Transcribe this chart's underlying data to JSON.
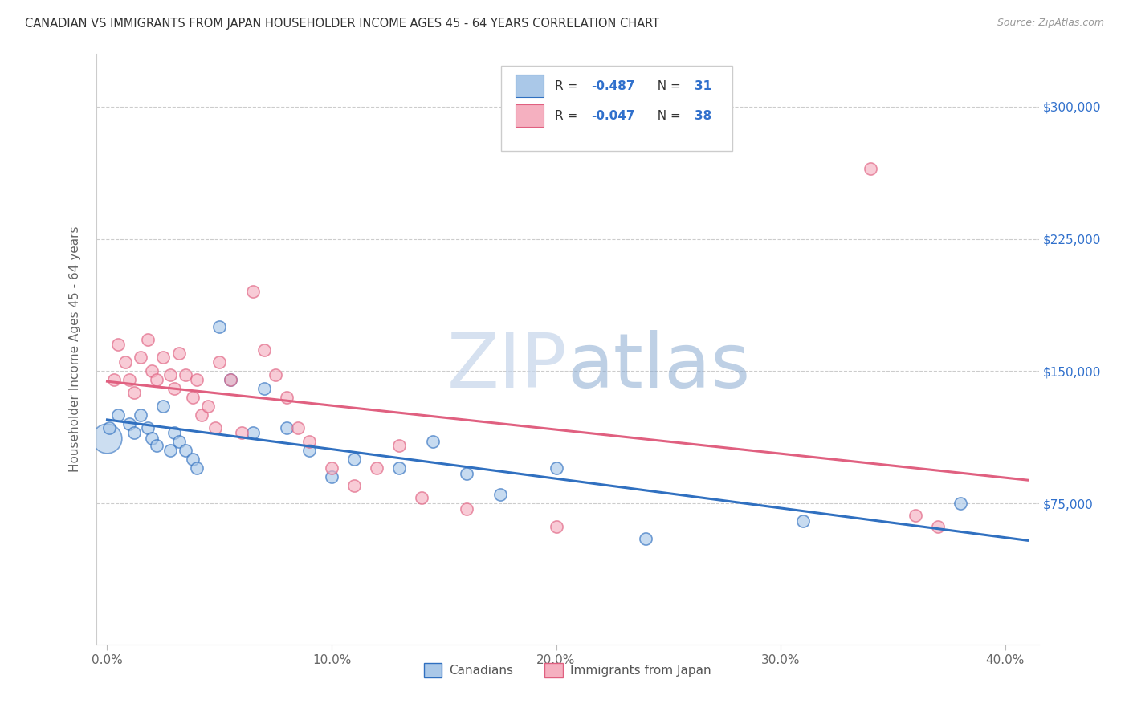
{
  "title": "CANADIAN VS IMMIGRANTS FROM JAPAN HOUSEHOLDER INCOME AGES 45 - 64 YEARS CORRELATION CHART",
  "source": "Source: ZipAtlas.com",
  "ylabel": "Householder Income Ages 45 - 64 years",
  "xlabel_ticks": [
    "0.0%",
    "10.0%",
    "20.0%",
    "30.0%",
    "40.0%"
  ],
  "xlabel_tick_vals": [
    0.0,
    0.1,
    0.2,
    0.3,
    0.4
  ],
  "ytick_labels": [
    "$75,000",
    "$150,000",
    "$225,000",
    "$300,000"
  ],
  "ytick_vals": [
    75000,
    150000,
    225000,
    300000
  ],
  "xlim": [
    -0.005,
    0.415
  ],
  "ylim": [
    -5000,
    330000
  ],
  "canadians_R": -0.487,
  "canadians_N": 31,
  "japan_R": -0.047,
  "japan_N": 38,
  "legend_labels": [
    "Canadians",
    "Immigrants from Japan"
  ],
  "canadians_color": "#aac8e8",
  "japan_color": "#f5b0c0",
  "canadians_line_color": "#3070c0",
  "japan_line_color": "#e06080",
  "canadians_scatter_x": [
    0.001,
    0.005,
    0.01,
    0.012,
    0.015,
    0.018,
    0.02,
    0.022,
    0.025,
    0.028,
    0.03,
    0.032,
    0.035,
    0.038,
    0.04,
    0.05,
    0.055,
    0.065,
    0.07,
    0.08,
    0.09,
    0.1,
    0.11,
    0.13,
    0.145,
    0.16,
    0.175,
    0.2,
    0.24,
    0.31,
    0.38
  ],
  "canadians_scatter_y": [
    118000,
    125000,
    120000,
    115000,
    125000,
    118000,
    112000,
    108000,
    130000,
    105000,
    115000,
    110000,
    105000,
    100000,
    95000,
    175000,
    145000,
    115000,
    140000,
    118000,
    105000,
    90000,
    100000,
    95000,
    110000,
    92000,
    80000,
    95000,
    55000,
    65000,
    75000
  ],
  "canadians_scatter_size": [
    60,
    60,
    60,
    60,
    60,
    60,
    60,
    60,
    60,
    60,
    60,
    60,
    60,
    60,
    60,
    60,
    60,
    60,
    60,
    60,
    60,
    60,
    60,
    60,
    60,
    60,
    60,
    60,
    60,
    60,
    60
  ],
  "canadians_big_x": [
    0.0
  ],
  "canadians_big_y": [
    112000
  ],
  "japan_scatter_x": [
    0.003,
    0.005,
    0.008,
    0.01,
    0.012,
    0.015,
    0.018,
    0.02,
    0.022,
    0.025,
    0.028,
    0.03,
    0.032,
    0.035,
    0.038,
    0.04,
    0.042,
    0.045,
    0.048,
    0.05,
    0.055,
    0.06,
    0.065,
    0.07,
    0.075,
    0.08,
    0.085,
    0.09,
    0.1,
    0.11,
    0.12,
    0.13,
    0.14,
    0.16,
    0.2,
    0.34,
    0.36,
    0.37
  ],
  "japan_scatter_y": [
    145000,
    165000,
    155000,
    145000,
    138000,
    158000,
    168000,
    150000,
    145000,
    158000,
    148000,
    140000,
    160000,
    148000,
    135000,
    145000,
    125000,
    130000,
    118000,
    155000,
    145000,
    115000,
    195000,
    162000,
    148000,
    135000,
    118000,
    110000,
    95000,
    85000,
    95000,
    108000,
    78000,
    72000,
    62000,
    265000,
    68000,
    62000
  ],
  "watermark_zip": "ZIP",
  "watermark_atlas": "atlas",
  "background_color": "#ffffff",
  "grid_color": "#cccccc"
}
